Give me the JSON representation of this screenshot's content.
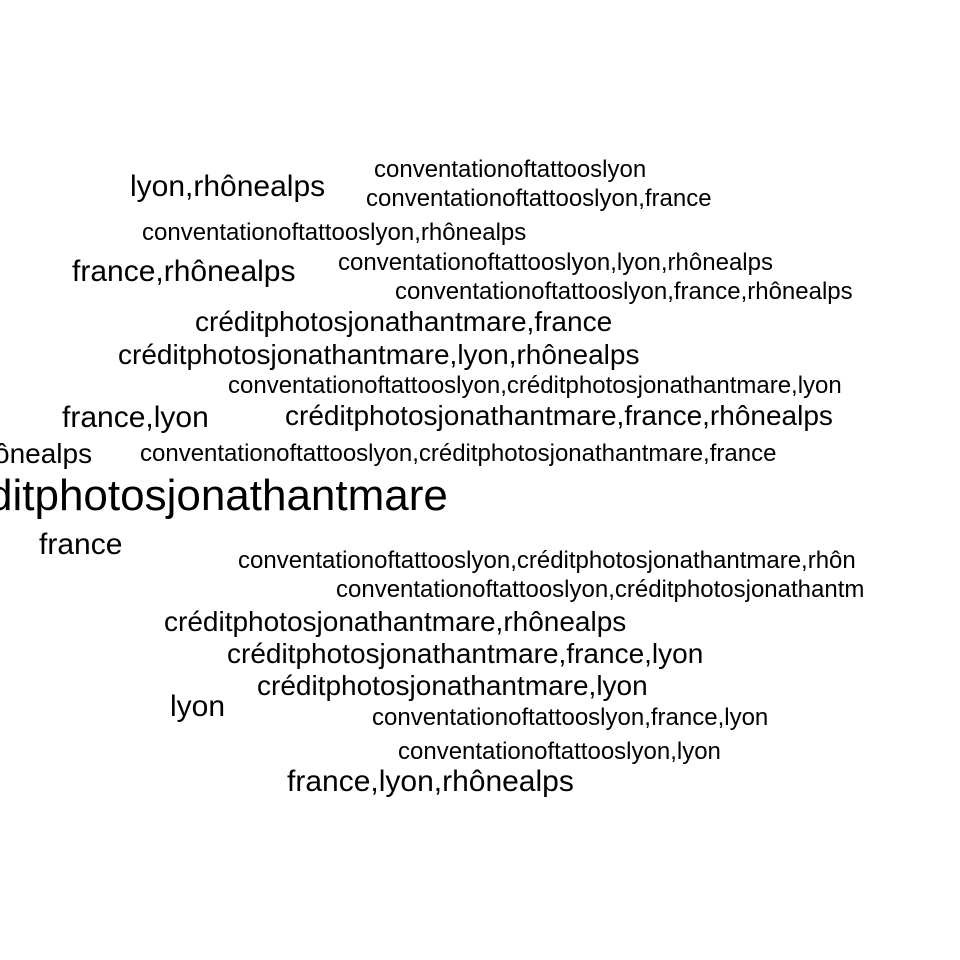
{
  "words": [
    "lyon,rhônealps",
    "conventationoftattooslyon",
    "conventationoftattooslyon,france",
    "conventationoftattooslyon,rhônealps",
    "france,rhônealps",
    "conventationoftattooslyon,lyon,rhônealps",
    "conventationoftattooslyon,france,rhônealps",
    "créditphotosjonathantmare,france",
    "créditphotosjonathantmare,lyon,rhônealps",
    "conventationoftattooslyon,créditphotosjonathantmare,lyon",
    "france,lyon",
    "créditphotosjonathantmare,france,rhônealps",
    "ônealps",
    "conventationoftattooslyon,créditphotosjonathantmare,france",
    "ditphotosjonathantmare",
    "france",
    "conventationoftattooslyon,créditphotosjonathantmare,rhôn",
    "conventationoftattooslyon,créditphotosjonathantm",
    "créditphotosjonathantmare,rhônealps",
    "créditphotosjonathantmare,france,lyon",
    "créditphotosjonathantmare,lyon",
    "lyon",
    "conventationoftattooslyon,france,lyon",
    "conventationoftattooslyon,lyon",
    "france,lyon,rhônealps"
  ]
}
